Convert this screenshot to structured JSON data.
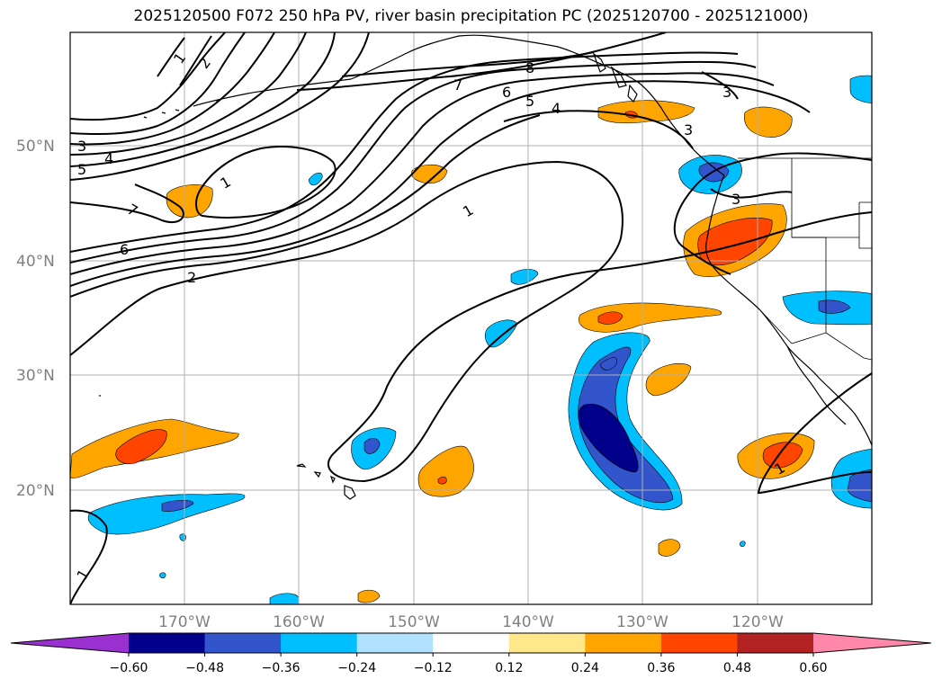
{
  "title": "2025120500 F072 250 hPa PV, river basin precipitation PC (2025120700 - 2025121000)",
  "lat_labels": [
    "50°N",
    "40°N",
    "30°N",
    "20°N"
  ],
  "lon_labels": [
    "170°W",
    "160°W",
    "150°W",
    "140°W",
    "130°W",
    "120°W"
  ],
  "colorbar": {
    "tick_labels": [
      "−0.60",
      "−0.48",
      "−0.36",
      "−0.24",
      "−0.12",
      "0.12",
      "0.24",
      "0.36",
      "0.48",
      "0.60"
    ],
    "colors": [
      "#9b30d0",
      "#00008b",
      "#3355cc",
      "#00bfff",
      "#b0e2ff",
      "#ffffff",
      "#ffe88c",
      "#ffa500",
      "#ff4500",
      "#b22222",
      "#ff88aa"
    ]
  },
  "pv_contour_labels": [
    "1",
    "2",
    "3",
    "4",
    "5",
    "6",
    "7",
    "8",
    "1",
    "2",
    "3",
    "4",
    "5",
    "6",
    "7",
    "1",
    "1",
    "1",
    "3",
    "3"
  ],
  "colors": {
    "pv_line": "#000000",
    "coast": "#000000",
    "grid": "#b0b0b0"
  }
}
